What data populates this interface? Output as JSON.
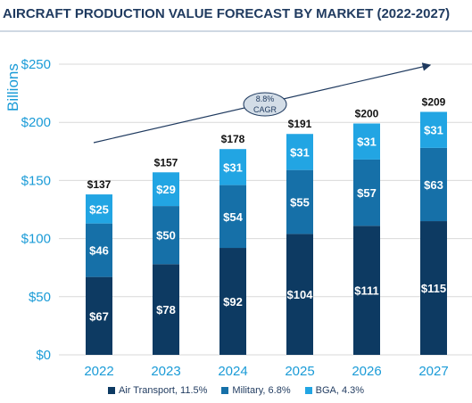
{
  "title": "AIRCRAFT PRODUCTION VALUE FORECAST BY MARKET (2022-2027)",
  "chart_data": {
    "type": "bar",
    "stacked": true,
    "ylabel": "Billions",
    "ylim": [
      0,
      250
    ],
    "yticks": [
      "$0",
      "$50",
      "$100",
      "$150",
      "$200",
      "$250"
    ],
    "grid": true,
    "legend_position": "bottom",
    "categories": [
      "2022",
      "2023",
      "2024",
      "2025",
      "2026",
      "2027"
    ],
    "series": [
      {
        "name": "Air Transport, 11.5%",
        "color": "#0d3a62",
        "values": [
          67,
          78,
          92,
          104,
          111,
          115
        ],
        "labels": [
          "$67",
          "$78",
          "$92",
          "$104",
          "$111",
          "$115"
        ]
      },
      {
        "name": "Military, 6.8%",
        "color": "#1670a8",
        "values": [
          46,
          50,
          54,
          55,
          57,
          63
        ],
        "labels": [
          "$46",
          "$50",
          "$54",
          "$55",
          "$57",
          "$63"
        ]
      },
      {
        "name": "BGA, 4.3%",
        "color": "#22a5e3",
        "values": [
          25,
          29,
          31,
          31,
          31,
          31
        ],
        "labels": [
          "$25",
          "$29",
          "$31",
          "$31",
          "$31",
          "$31"
        ]
      }
    ],
    "totals": [
      "$137",
      "$157",
      "$178",
      "$191",
      "$200",
      "$209"
    ],
    "annotation": {
      "line1": "8.8%",
      "line2": "CAGR"
    }
  }
}
